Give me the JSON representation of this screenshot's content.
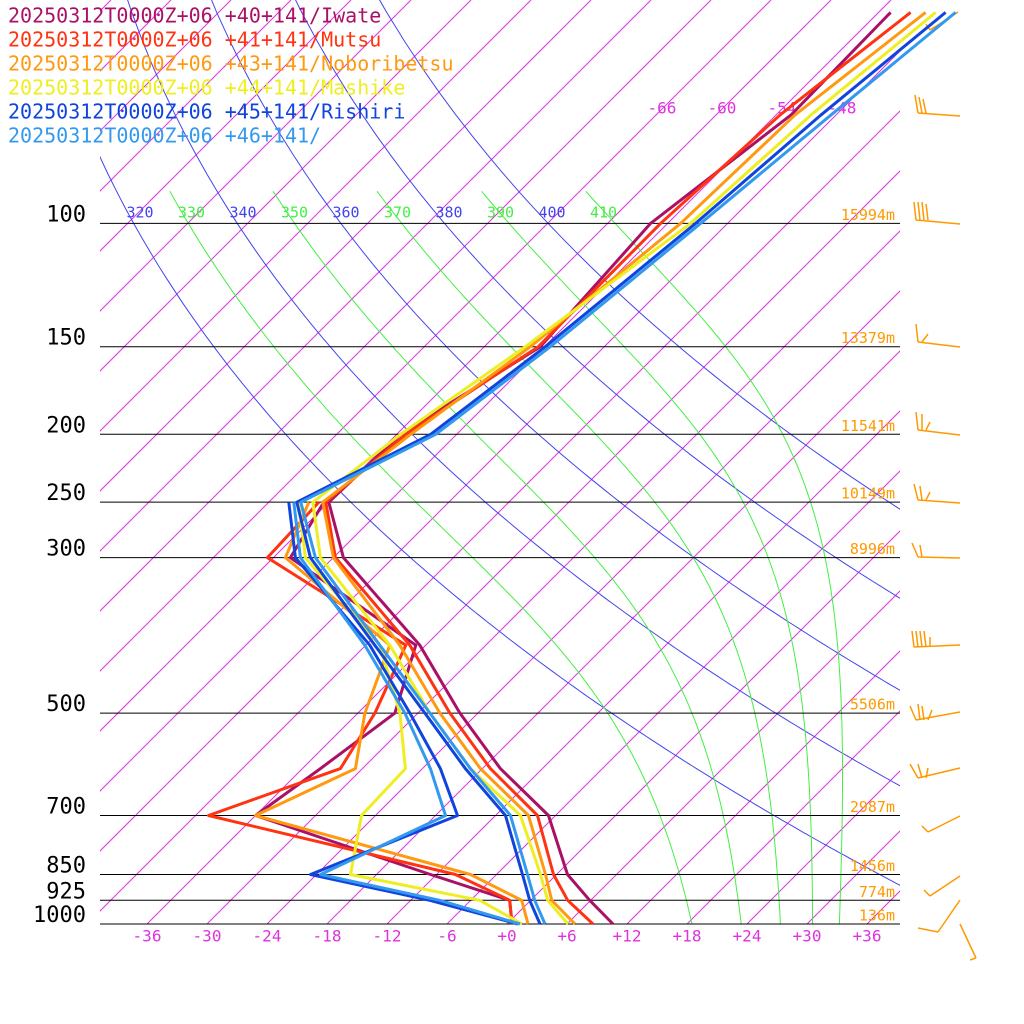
{
  "chart_data": {
    "type": "skewt",
    "pressure_levels": [
      1000,
      925,
      850,
      700,
      600,
      500,
      400,
      300,
      250,
      200,
      150,
      100,
      70,
      50
    ],
    "series": [
      {
        "name": "20250312T0000Z+06 +40+141/Iwate",
        "color": "#aa1166",
        "temperature": [
          10.6,
          5.9,
          1.1,
          -6.7,
          -16.2,
          -25.8,
          -36.6,
          -53,
          -60,
          -59.6,
          -54.4,
          -55.7,
          -52.5,
          -52.8
        ],
        "dewpoint": [
          0.5,
          -2.1,
          -12.6,
          -36,
          -34.2,
          -32.3,
          -37,
          -58.3,
          -60.5,
          null,
          null,
          null,
          null,
          null
        ]
      },
      {
        "name": "20250312T0000Z+06 +41+141/Mutsu",
        "color": "#ff3311",
        "temperature": [
          8.6,
          3.7,
          -0.3,
          -7.8,
          -17.2,
          -26.8,
          -37.6,
          -53.8,
          -60.3,
          -59.1,
          -54.6,
          -54.7,
          -53.6,
          -50.8
        ],
        "dewpoint": [
          0.5,
          -2.1,
          -10.1,
          -40.7,
          -32.2,
          -34.3,
          -38,
          -60.6,
          -61,
          null,
          null,
          null,
          null,
          null
        ]
      },
      {
        "name": "20250312T0000Z+06 +43+141/Noboribetsu",
        "color": "#ff9911",
        "temperature": [
          6.8,
          2.1,
          -1.1,
          -8.7,
          -18.2,
          -27.8,
          -38.6,
          -54,
          -60.6,
          -58.6,
          -55.4,
          -52.7,
          -52.1,
          -49.3
        ],
        "dewpoint": [
          2.1,
          -0.9,
          -8.6,
          -36,
          -30.7,
          -35.3,
          -39.6,
          -58.8,
          -62,
          null,
          null,
          null,
          null,
          null
        ]
      },
      {
        "name": "20250312T0000Z+06 +44+141/Mashike",
        "color": "#eeee22",
        "temperature": [
          6.1,
          1.7,
          -1.6,
          -9.5,
          -19.2,
          -28.8,
          -39.6,
          -55.3,
          -61.6,
          -59.6,
          -55.9,
          -51.7,
          -50.5,
          -48.3
        ],
        "dewpoint": [
          1.5,
          -5.1,
          -20.6,
          -25.4,
          -25.7,
          -31.8,
          -40.6,
          -56.8,
          -63,
          null,
          null,
          null,
          null,
          null
        ]
      },
      {
        "name": "20250312T0000Z+06 +45+141/Rishiri",
        "color": "#1144dd",
        "temperature": [
          3.3,
          -0.1,
          -3.4,
          -11,
          -19.7,
          -29.3,
          -41.1,
          -56.3,
          -63.2,
          -56.6,
          -53.9,
          -51.2,
          -49.5,
          -47.3
        ],
        "dewpoint": [
          1.1,
          -10.1,
          -24.6,
          -15.8,
          -22.2,
          -30.8,
          -41.6,
          -57.8,
          -64,
          null,
          null,
          null,
          null,
          null
        ]
      },
      {
        "name": "20250312T0000Z+06 +46+141/",
        "color": "#3399ee",
        "temperature": [
          3.8,
          0.4,
          -2.9,
          -10.5,
          -19.2,
          -28.8,
          -40.6,
          -55.8,
          -62.8,
          -56.1,
          -53.4,
          -50.7,
          -48.5,
          -46.3
        ],
        "dewpoint": [
          1.3,
          -9.1,
          -23.6,
          -17,
          -23.2,
          -31.3,
          -42.1,
          -57.3,
          -63.5,
          null,
          null,
          null,
          null,
          null
        ]
      }
    ],
    "ylim": [
      1000,
      48
    ],
    "yticks": [
      100,
      150,
      200,
      250,
      300,
      500,
      700,
      850,
      925,
      1000
    ],
    "height_labels": [
      "15994m",
      "13379m",
      "11541m",
      "10149m",
      "8996m",
      "5506m",
      "2987m",
      "1456m",
      "774m",
      "136m"
    ],
    "xlim": [
      -40.7,
      39.3
    ],
    "xticks": [
      -36,
      -30,
      -24,
      -18,
      -12,
      -6,
      {
        "value": 0,
        "label": "+0"
      },
      {
        "value": 6,
        "label": "+6"
      },
      {
        "value": 12,
        "label": "+12"
      },
      {
        "value": 18,
        "label": "+18"
      },
      {
        "value": 24,
        "label": "+24"
      },
      {
        "value": 30,
        "label": "+30"
      },
      {
        "value": 36,
        "label": "+36"
      }
    ],
    "isotherm_labels": [
      -66,
      -60,
      -54,
      -48
    ],
    "dry_adiabats": [
      320,
      340,
      360,
      380,
      400
    ],
    "moist_adiabats": [
      330,
      350,
      370,
      390,
      410
    ]
  }
}
